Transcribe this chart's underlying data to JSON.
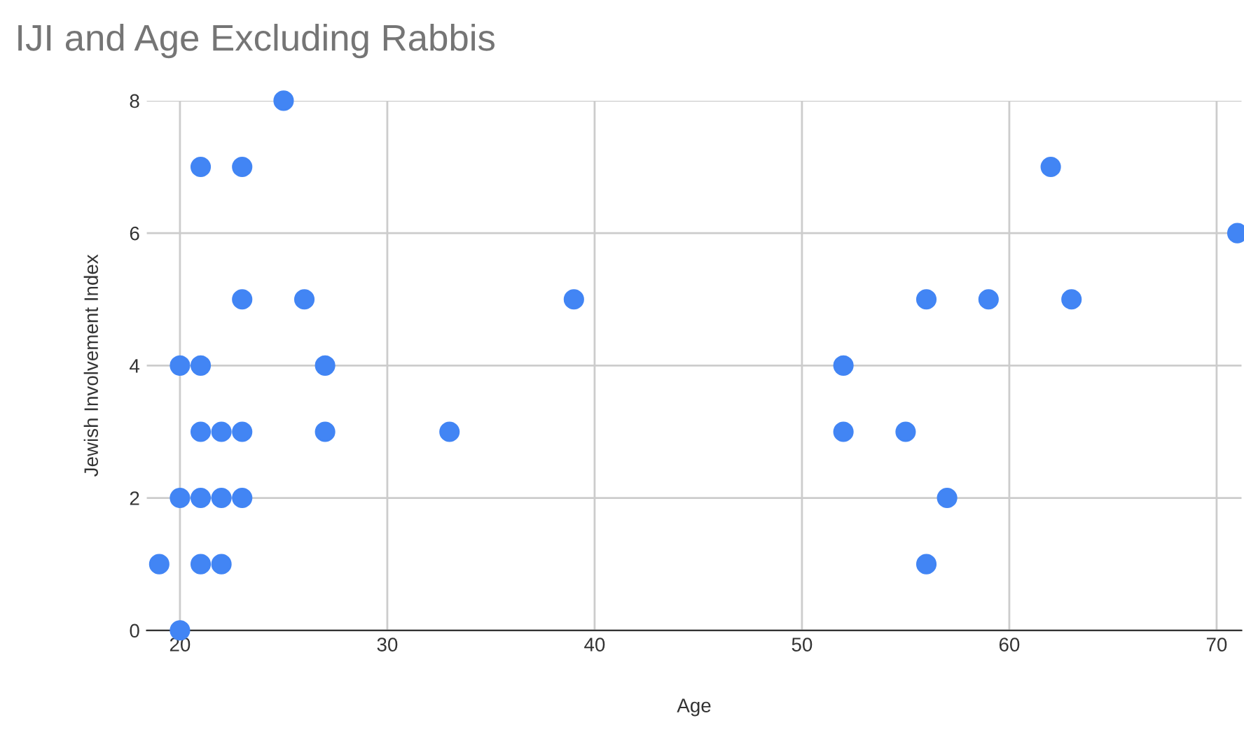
{
  "chart_data": {
    "type": "scatter",
    "title": "IJI and Age Excluding Rabbis",
    "xlabel": "Age",
    "ylabel": "Jewish Involvement Index",
    "x": [
      19,
      20,
      20,
      20,
      21,
      21,
      21,
      21,
      21,
      22,
      22,
      22,
      23,
      23,
      23,
      23,
      25,
      26,
      27,
      27,
      33,
      39,
      52,
      52,
      55,
      56,
      56,
      57,
      59,
      62,
      63,
      71
    ],
    "series": [
      {
        "color": "#4285f4",
        "values": [
          1,
          0,
          2,
          4,
          7,
          4,
          3,
          2,
          1,
          3,
          2,
          1,
          7,
          5,
          3,
          2,
          8,
          5,
          4,
          3,
          3,
          5,
          4,
          3,
          3,
          5,
          1,
          2,
          5,
          7,
          5,
          6
        ]
      }
    ],
    "xlim": [
      18.4,
      71.2
    ],
    "xticks": [
      20,
      30,
      40,
      50,
      60,
      70
    ],
    "ylim": [
      0,
      8
    ],
    "yticks": [
      0,
      2,
      4,
      6,
      8
    ],
    "grid": true,
    "marker": "circle",
    "legend": false
  }
}
